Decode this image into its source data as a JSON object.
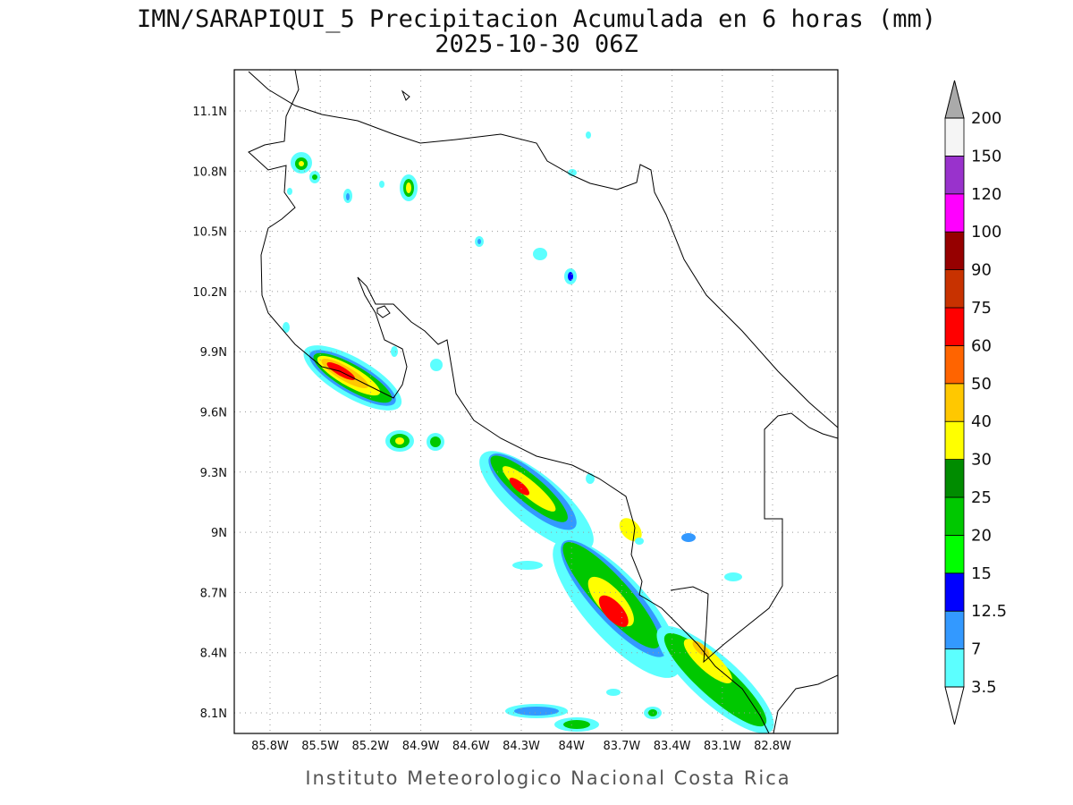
{
  "map": {
    "title": "IMN/SARAPIQUI_5 Precipitacion Acumulada en 6 horas (mm)",
    "subtitle": "2025-10-30 06Z",
    "lon_labels": [
      "85.8W",
      "85.5W",
      "85.2W",
      "84.9W",
      "84.6W",
      "84.3W",
      "84W",
      "83.7W",
      "83.4W",
      "83.1W",
      "82.8W"
    ],
    "lat_labels": [
      "11.1N",
      "10.8N",
      "10.5N",
      "10.2N",
      "9.9N",
      "9.6N",
      "9.3N",
      "9N",
      "8.7N",
      "8.4N",
      "8.1N"
    ],
    "footer": "Instituto Meteorologico Nacional Costa Rica"
  },
  "colorbar": {
    "levels": [
      3.5,
      7,
      12.5,
      15,
      20,
      25,
      30,
      40,
      50,
      60,
      75,
      90,
      100,
      120,
      150,
      200
    ],
    "colors": [
      "#5cffff",
      "#3399ff",
      "#0000ff",
      "#00ff00",
      "#00c800",
      "#008c00",
      "#ffff00",
      "#ffc800",
      "#ff6400",
      "#ff0000",
      "#c83200",
      "#960000",
      "#ff00ff",
      "#9932cc",
      "#f5f5f5"
    ],
    "over_color": "#aaaaaa",
    "under_color": "#ffffff"
  }
}
